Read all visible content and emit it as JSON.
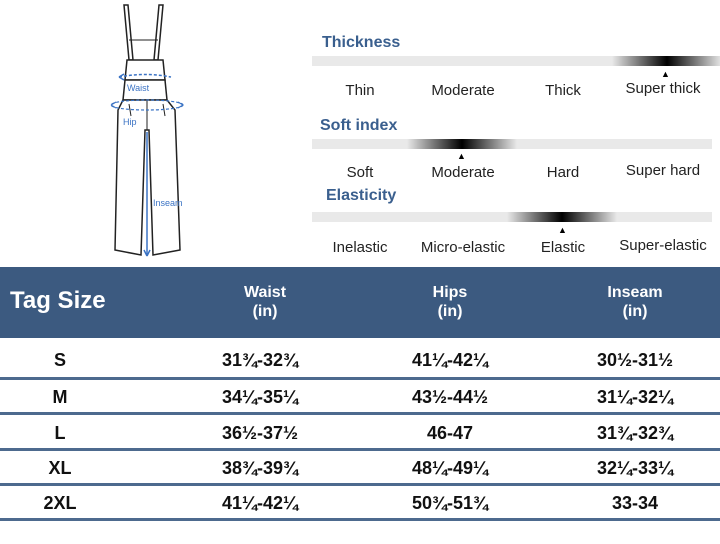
{
  "figure": {
    "waist_label": "Waist",
    "hip_label": "Hip",
    "inseam_label": "Inseam"
  },
  "scales": {
    "thickness": {
      "title": "Thickness",
      "options": [
        "Thin",
        "Moderate",
        "Thick",
        "Super thick"
      ],
      "selected": "Super thick"
    },
    "soft_index": {
      "title": "Soft index",
      "options": [
        "Soft",
        "Moderate",
        "Hard",
        "Super hard"
      ],
      "selected": "Moderate"
    },
    "elasticity": {
      "title": "Elasticity",
      "options": [
        "Inelastic",
        "Micro-elastic",
        "Elastic",
        "Super-elastic"
      ],
      "selected": "Elastic"
    }
  },
  "table": {
    "headers": {
      "size": "Tag Size",
      "waist": "Waist",
      "hips": "Hips",
      "inseam": "Inseam",
      "unit": "(in)"
    },
    "rows": [
      {
        "size": "S",
        "waist": "31¾-32¾",
        "hips": "41¼-42¼",
        "inseam": "30½-31½"
      },
      {
        "size": "M",
        "waist": "34¼-35¼",
        "hips": "43½-44½",
        "inseam": "31¼-32¼"
      },
      {
        "size": "L",
        "waist": "36½-37½",
        "hips": "46-47",
        "inseam": "31¾-32¾"
      },
      {
        "size": "XL",
        "waist": "38¾-39¾",
        "hips": "48¼-49¼",
        "inseam": "32¼-33¼"
      },
      {
        "size": "2XL",
        "waist": "41¼-42¼",
        "hips": "50¾-51¾",
        "inseam": "33-34"
      }
    ]
  },
  "colors": {
    "header_bg": "#3c5a80",
    "accent_title": "#3a5f8e",
    "measure_blue": "#3b73c4"
  }
}
